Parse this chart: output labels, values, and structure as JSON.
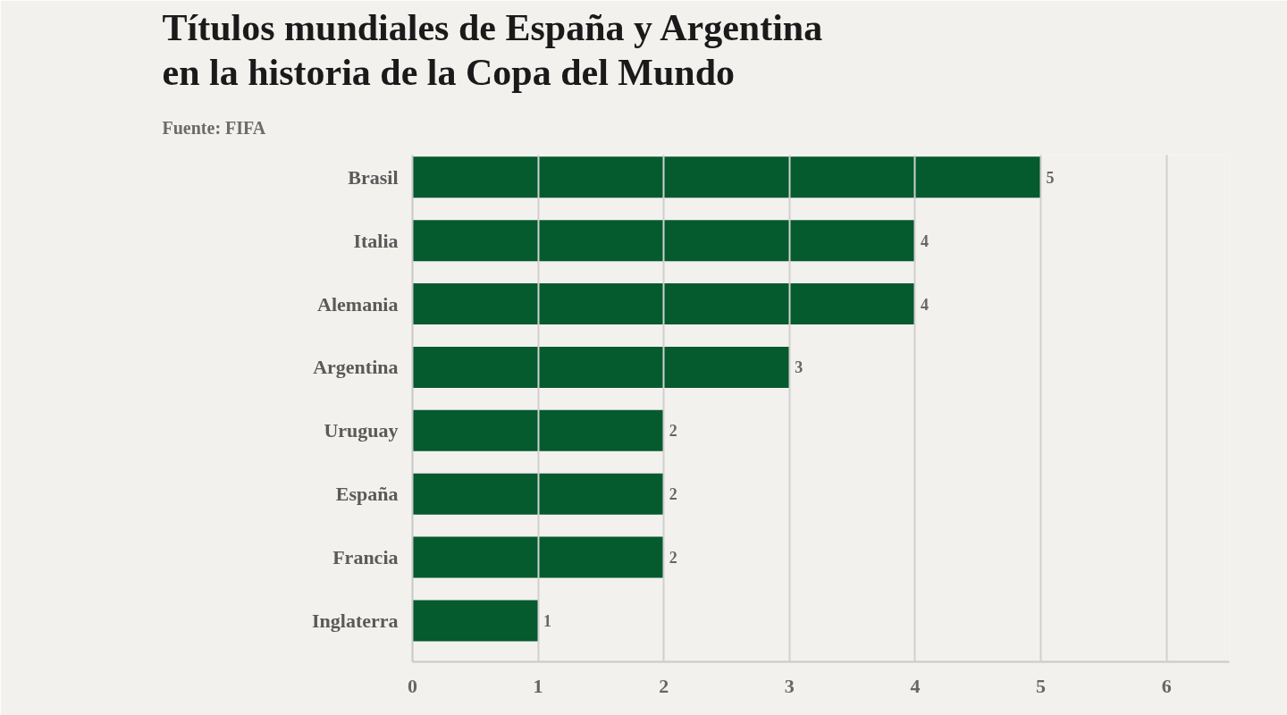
{
  "chart_data": {
    "type": "bar",
    "orientation": "horizontal",
    "title": "Títulos mundiales de España y Argentina en la historia de la Copa del Mundo",
    "subtitle": "Fuente: FIFA",
    "categories": [
      "Brasil",
      "Italia",
      "Alemania",
      "Argentina",
      "Uruguay",
      "España",
      "Francia",
      "Inglaterra"
    ],
    "values": [
      5,
      4,
      4,
      3,
      2,
      2,
      2,
      1
    ],
    "color": "#055a2e",
    "data_labels": true,
    "xlim": [
      0,
      6.5
    ],
    "xticks": [
      0,
      1,
      2,
      3,
      4,
      5,
      6
    ],
    "grid": "x"
  }
}
